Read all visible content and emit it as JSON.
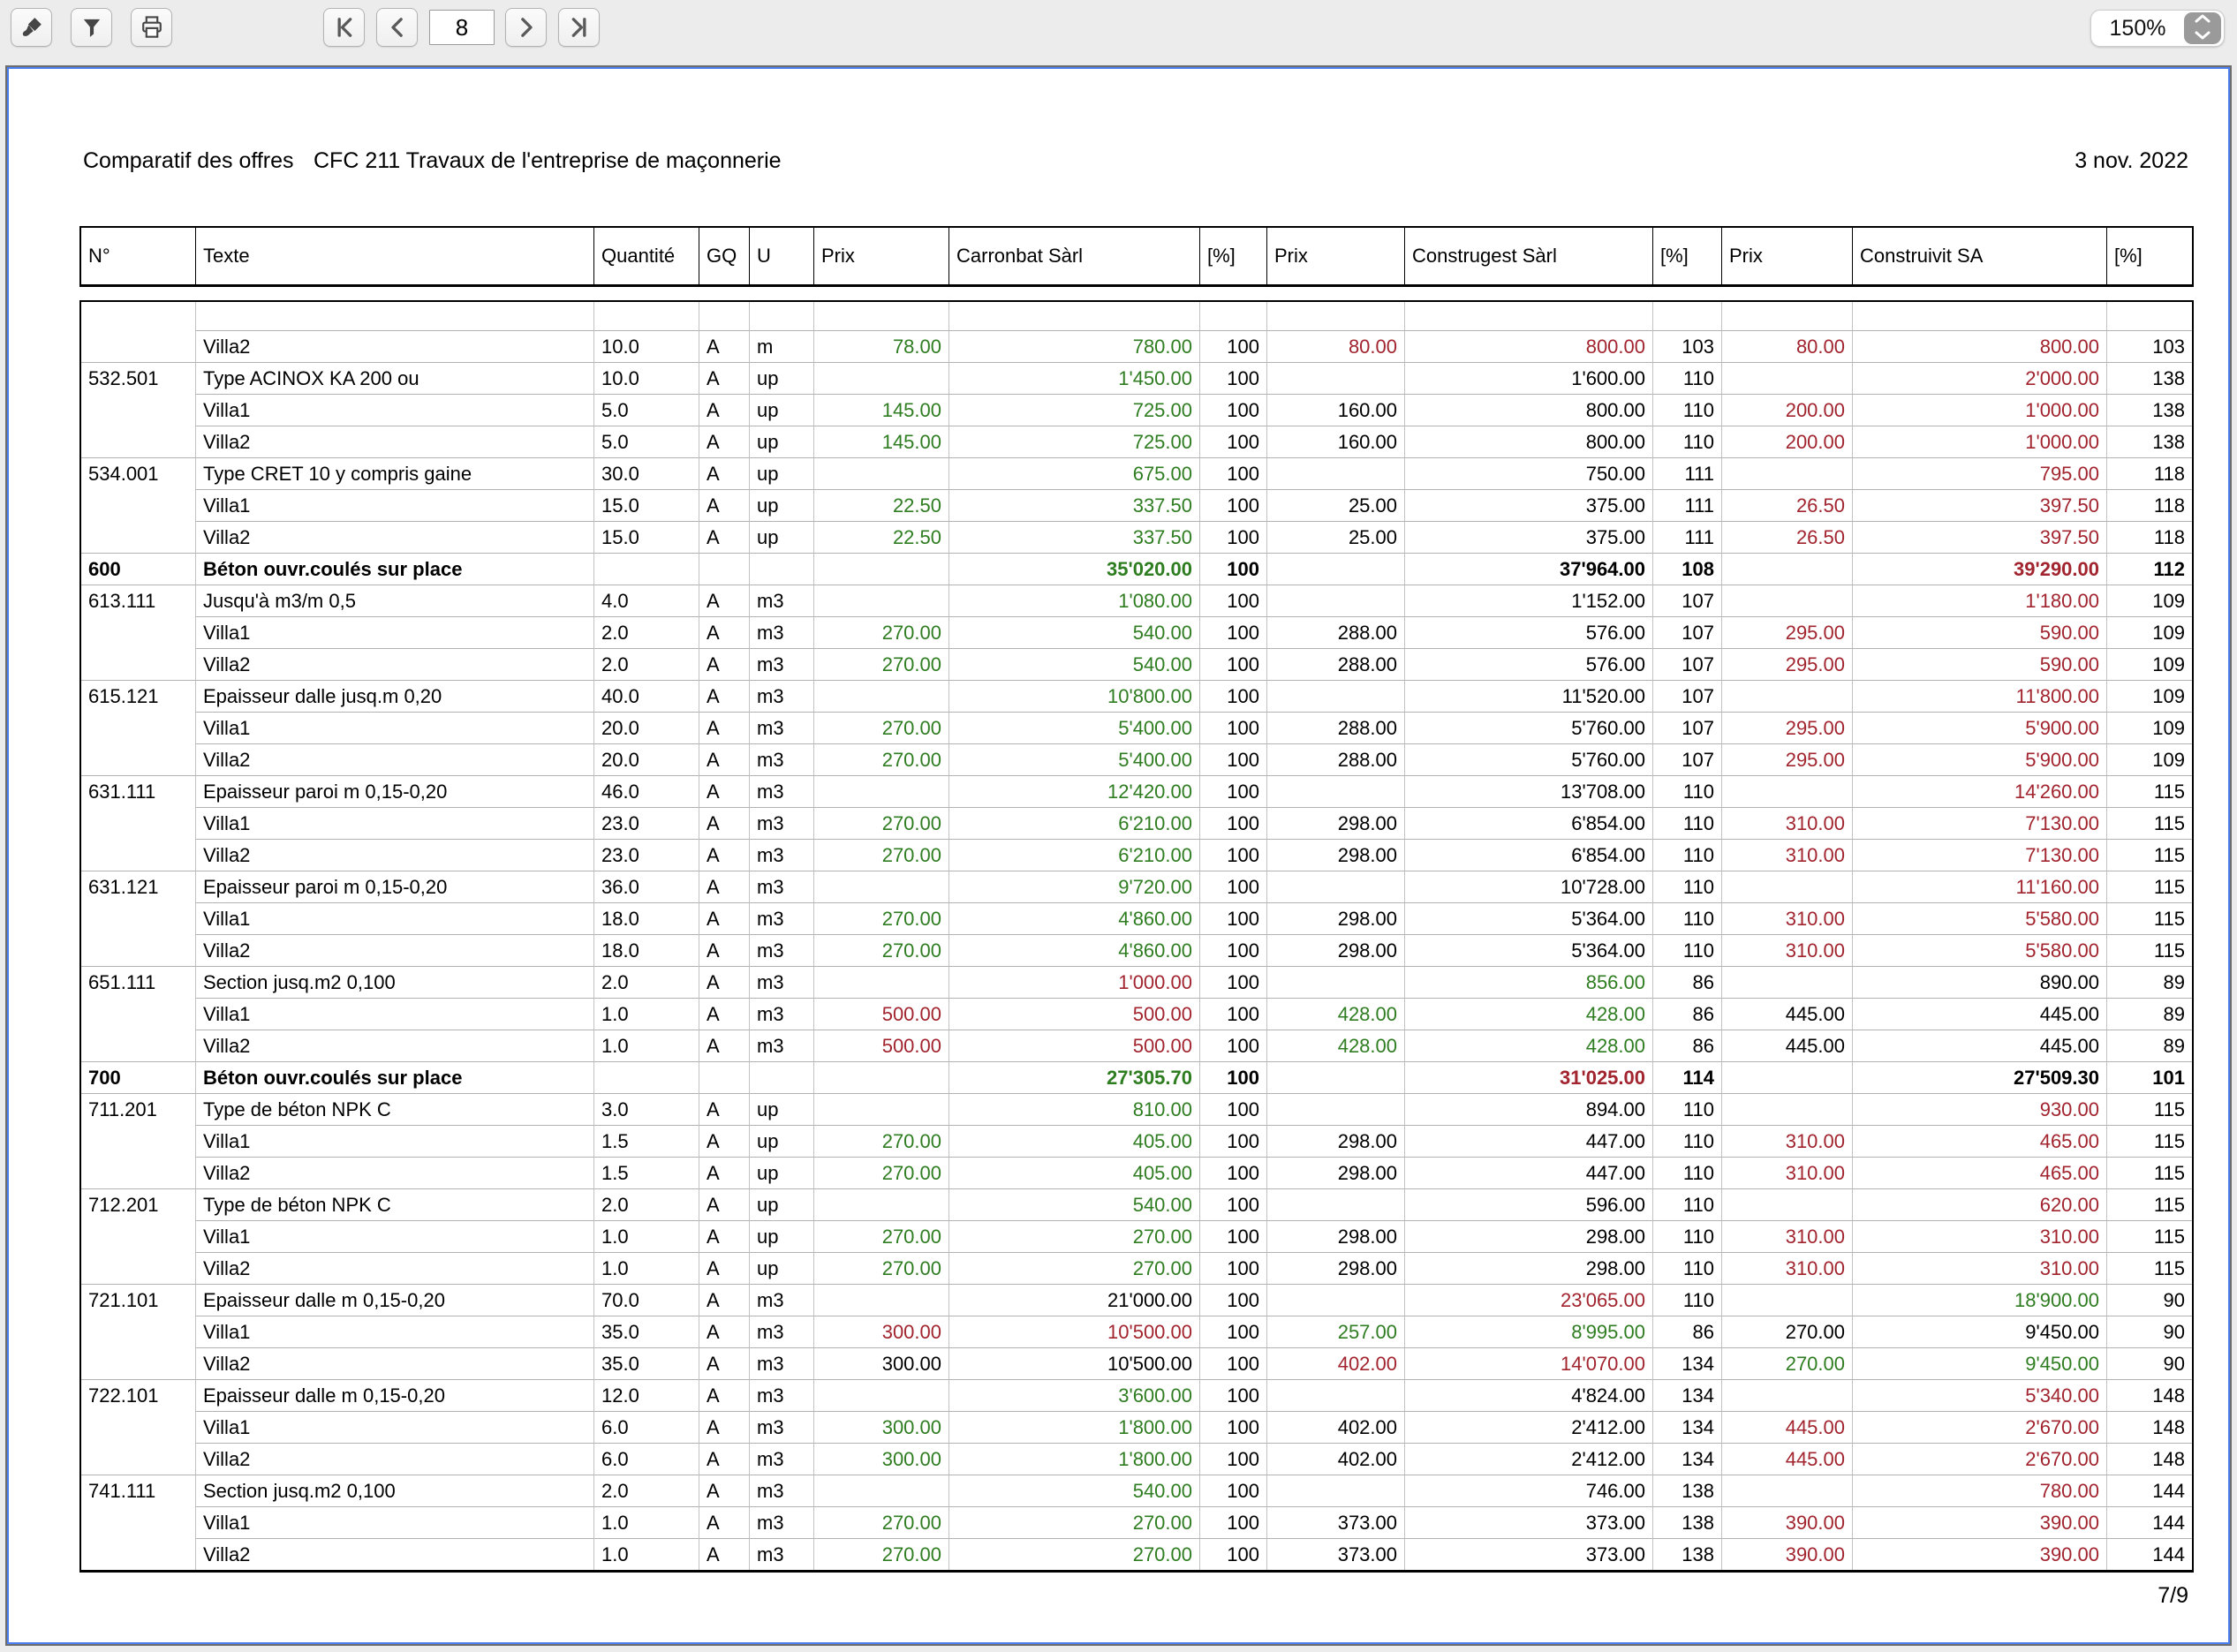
{
  "toolbar": {
    "page_field_value": "8",
    "zoom_value": "150%"
  },
  "document": {
    "title_left": "Comparatif des offres",
    "title_center": "CFC 211 Travaux de l'entreprise de maçonnerie",
    "date": "3 nov. 2022",
    "page_indicator": "7/9"
  },
  "colors": {
    "positive_green": "#2e7d20",
    "negative_red": "#a1242e",
    "frame_blue": "#4a7df0"
  },
  "table": {
    "columns": [
      "N°",
      "Texte",
      "Quantité",
      "GQ",
      "U",
      "Prix",
      "Carronbat Sàrl",
      "[%]",
      "Prix",
      "Construgest Sàrl",
      "[%]",
      "Prix",
      "Construivit SA",
      "[%]"
    ],
    "rows": [
      {
        "k": "e",
        "no": "",
        "tx": "",
        "q": "",
        "gq": "",
        "u": "",
        "v": [
          "",
          "",
          "",
          "",
          "",
          "",
          "",
          "",
          ""
        ],
        "c": "---------"
      },
      {
        "k": "s",
        "no": "",
        "tx": "Villa2",
        "q": "10.0",
        "gq": "A",
        "u": "m",
        "v": [
          "78.00",
          "780.00",
          "100",
          "80.00",
          "800.00",
          "103",
          "80.00",
          "800.00",
          "103"
        ],
        "c": "ggkrrkrrk"
      },
      {
        "k": "i",
        "no": "532.501",
        "tx": "Type ACINOX KA 200 ou",
        "q": "10.0",
        "gq": "A",
        "u": "up",
        "v": [
          "",
          "1'450.00",
          "100",
          "",
          "1'600.00",
          "110",
          "",
          "2'000.00",
          "138"
        ],
        "c": "-gk-kk-rk"
      },
      {
        "k": "s",
        "no": "",
        "tx": "Villa1",
        "q": "5.0",
        "gq": "A",
        "u": "up",
        "v": [
          "145.00",
          "725.00",
          "100",
          "160.00",
          "800.00",
          "110",
          "200.00",
          "1'000.00",
          "138"
        ],
        "c": "ggkkkkrrk"
      },
      {
        "k": "s",
        "no": "",
        "tx": "Villa2",
        "q": "5.0",
        "gq": "A",
        "u": "up",
        "v": [
          "145.00",
          "725.00",
          "100",
          "160.00",
          "800.00",
          "110",
          "200.00",
          "1'000.00",
          "138"
        ],
        "c": "ggkkkkrrk"
      },
      {
        "k": "i",
        "no": "534.001",
        "tx": "Type  CRET 10 y compris gaine",
        "q": "30.0",
        "gq": "A",
        "u": "up",
        "v": [
          "",
          "675.00",
          "100",
          "",
          "750.00",
          "111",
          "",
          "795.00",
          "118"
        ],
        "c": "-gk-kk-rk"
      },
      {
        "k": "s",
        "no": "",
        "tx": "Villa1",
        "q": "15.0",
        "gq": "A",
        "u": "up",
        "v": [
          "22.50",
          "337.50",
          "100",
          "25.00",
          "375.00",
          "111",
          "26.50",
          "397.50",
          "118"
        ],
        "c": "ggkkkkrrk"
      },
      {
        "k": "s",
        "no": "",
        "tx": "Villa2",
        "q": "15.0",
        "gq": "A",
        "u": "up",
        "v": [
          "22.50",
          "337.50",
          "100",
          "25.00",
          "375.00",
          "111",
          "26.50",
          "397.50",
          "118"
        ],
        "c": "ggkkkkrrk"
      },
      {
        "k": "t",
        "no": "600",
        "tx": "Béton ouvr.coulés sur place",
        "q": "",
        "gq": "",
        "u": "",
        "v": [
          "",
          "35'020.00",
          "100",
          "",
          "37'964.00",
          "108",
          "",
          "39'290.00",
          "112"
        ],
        "c": "-gk-kk-rk"
      },
      {
        "k": "i",
        "no": "613.111",
        "tx": "Jusqu'à m3/m 0,5",
        "q": "4.0",
        "gq": "A",
        "u": "m3",
        "v": [
          "",
          "1'080.00",
          "100",
          "",
          "1'152.00",
          "107",
          "",
          "1'180.00",
          "109"
        ],
        "c": "-gk-kk-rk"
      },
      {
        "k": "s",
        "no": "",
        "tx": "Villa1",
        "q": "2.0",
        "gq": "A",
        "u": "m3",
        "v": [
          "270.00",
          "540.00",
          "100",
          "288.00",
          "576.00",
          "107",
          "295.00",
          "590.00",
          "109"
        ],
        "c": "ggkkkkrrk"
      },
      {
        "k": "s",
        "no": "",
        "tx": "Villa2",
        "q": "2.0",
        "gq": "A",
        "u": "m3",
        "v": [
          "270.00",
          "540.00",
          "100",
          "288.00",
          "576.00",
          "107",
          "295.00",
          "590.00",
          "109"
        ],
        "c": "ggkkkkrrk"
      },
      {
        "k": "i",
        "no": "615.121",
        "tx": "Epaisseur dalle jusq.m 0,20",
        "q": "40.0",
        "gq": "A",
        "u": "m3",
        "v": [
          "",
          "10'800.00",
          "100",
          "",
          "11'520.00",
          "107",
          "",
          "11'800.00",
          "109"
        ],
        "c": "-gk-kk-rk"
      },
      {
        "k": "s",
        "no": "",
        "tx": "Villa1",
        "q": "20.0",
        "gq": "A",
        "u": "m3",
        "v": [
          "270.00",
          "5'400.00",
          "100",
          "288.00",
          "5'760.00",
          "107",
          "295.00",
          "5'900.00",
          "109"
        ],
        "c": "ggkkkkrrk"
      },
      {
        "k": "s",
        "no": "",
        "tx": "Villa2",
        "q": "20.0",
        "gq": "A",
        "u": "m3",
        "v": [
          "270.00",
          "5'400.00",
          "100",
          "288.00",
          "5'760.00",
          "107",
          "295.00",
          "5'900.00",
          "109"
        ],
        "c": "ggkkkkrrk"
      },
      {
        "k": "i",
        "no": "631.111",
        "tx": "Epaisseur paroi m 0,15-0,20",
        "q": "46.0",
        "gq": "A",
        "u": "m3",
        "v": [
          "",
          "12'420.00",
          "100",
          "",
          "13'708.00",
          "110",
          "",
          "14'260.00",
          "115"
        ],
        "c": "-gk-kk-rk"
      },
      {
        "k": "s",
        "no": "",
        "tx": "Villa1",
        "q": "23.0",
        "gq": "A",
        "u": "m3",
        "v": [
          "270.00",
          "6'210.00",
          "100",
          "298.00",
          "6'854.00",
          "110",
          "310.00",
          "7'130.00",
          "115"
        ],
        "c": "ggkkkkrrk"
      },
      {
        "k": "s",
        "no": "",
        "tx": "Villa2",
        "q": "23.0",
        "gq": "A",
        "u": "m3",
        "v": [
          "270.00",
          "6'210.00",
          "100",
          "298.00",
          "6'854.00",
          "110",
          "310.00",
          "7'130.00",
          "115"
        ],
        "c": "ggkkkkrrk"
      },
      {
        "k": "i",
        "no": "631.121",
        "tx": "Epaisseur paroi m 0,15-0,20",
        "q": "36.0",
        "gq": "A",
        "u": "m3",
        "v": [
          "",
          "9'720.00",
          "100",
          "",
          "10'728.00",
          "110",
          "",
          "11'160.00",
          "115"
        ],
        "c": "-gk-kk-rk"
      },
      {
        "k": "s",
        "no": "",
        "tx": "Villa1",
        "q": "18.0",
        "gq": "A",
        "u": "m3",
        "v": [
          "270.00",
          "4'860.00",
          "100",
          "298.00",
          "5'364.00",
          "110",
          "310.00",
          "5'580.00",
          "115"
        ],
        "c": "ggkkkkrrk"
      },
      {
        "k": "s",
        "no": "",
        "tx": "Villa2",
        "q": "18.0",
        "gq": "A",
        "u": "m3",
        "v": [
          "270.00",
          "4'860.00",
          "100",
          "298.00",
          "5'364.00",
          "110",
          "310.00",
          "5'580.00",
          "115"
        ],
        "c": "ggkkkkrrk"
      },
      {
        "k": "i",
        "no": "651.111",
        "tx": "Section jusq.m2 0,100",
        "q": "2.0",
        "gq": "A",
        "u": "m3",
        "v": [
          "",
          "1'000.00",
          "100",
          "",
          "856.00",
          "86",
          "",
          "890.00",
          "89"
        ],
        "c": "-rk-gk-kk"
      },
      {
        "k": "s",
        "no": "",
        "tx": "Villa1",
        "q": "1.0",
        "gq": "A",
        "u": "m3",
        "v": [
          "500.00",
          "500.00",
          "100",
          "428.00",
          "428.00",
          "86",
          "445.00",
          "445.00",
          "89"
        ],
        "c": "rrkggkkkk"
      },
      {
        "k": "s",
        "no": "",
        "tx": "Villa2",
        "q": "1.0",
        "gq": "A",
        "u": "m3",
        "v": [
          "500.00",
          "500.00",
          "100",
          "428.00",
          "428.00",
          "86",
          "445.00",
          "445.00",
          "89"
        ],
        "c": "rrkggkkkk"
      },
      {
        "k": "t",
        "no": "700",
        "tx": "Béton ouvr.coulés sur place",
        "q": "",
        "gq": "",
        "u": "",
        "v": [
          "",
          "27'305.70",
          "100",
          "",
          "31'025.00",
          "114",
          "",
          "27'509.30",
          "101"
        ],
        "c": "-gk-rk-kk"
      },
      {
        "k": "i",
        "no": "711.201",
        "tx": "Type de béton NPK C",
        "q": "3.0",
        "gq": "A",
        "u": "up",
        "v": [
          "",
          "810.00",
          "100",
          "",
          "894.00",
          "110",
          "",
          "930.00",
          "115"
        ],
        "c": "-gk-kk-rk"
      },
      {
        "k": "s",
        "no": "",
        "tx": "Villa1",
        "q": "1.5",
        "gq": "A",
        "u": "up",
        "v": [
          "270.00",
          "405.00",
          "100",
          "298.00",
          "447.00",
          "110",
          "310.00",
          "465.00",
          "115"
        ],
        "c": "ggkkkkrrk"
      },
      {
        "k": "s",
        "no": "",
        "tx": "Villa2",
        "q": "1.5",
        "gq": "A",
        "u": "up",
        "v": [
          "270.00",
          "405.00",
          "100",
          "298.00",
          "447.00",
          "110",
          "310.00",
          "465.00",
          "115"
        ],
        "c": "ggkkkkrrk"
      },
      {
        "k": "i",
        "no": "712.201",
        "tx": "Type de béton NPK C",
        "q": "2.0",
        "gq": "A",
        "u": "up",
        "v": [
          "",
          "540.00",
          "100",
          "",
          "596.00",
          "110",
          "",
          "620.00",
          "115"
        ],
        "c": "-gk-kk-rk"
      },
      {
        "k": "s",
        "no": "",
        "tx": "Villa1",
        "q": "1.0",
        "gq": "A",
        "u": "up",
        "v": [
          "270.00",
          "270.00",
          "100",
          "298.00",
          "298.00",
          "110",
          "310.00",
          "310.00",
          "115"
        ],
        "c": "ggkkkkrrk"
      },
      {
        "k": "s",
        "no": "",
        "tx": "Villa2",
        "q": "1.0",
        "gq": "A",
        "u": "up",
        "v": [
          "270.00",
          "270.00",
          "100",
          "298.00",
          "298.00",
          "110",
          "310.00",
          "310.00",
          "115"
        ],
        "c": "ggkkkkrrk"
      },
      {
        "k": "i",
        "no": "721.101",
        "tx": "Epaisseur dalle m 0,15-0,20",
        "q": "70.0",
        "gq": "A",
        "u": "m3",
        "v": [
          "",
          "21'000.00",
          "100",
          "",
          "23'065.00",
          "110",
          "",
          "18'900.00",
          "90"
        ],
        "c": "-kk-rk-gk"
      },
      {
        "k": "s",
        "no": "",
        "tx": "Villa1",
        "q": "35.0",
        "gq": "A",
        "u": "m3",
        "v": [
          "300.00",
          "10'500.00",
          "100",
          "257.00",
          "8'995.00",
          "86",
          "270.00",
          "9'450.00",
          "90"
        ],
        "c": "rrkggkkkk"
      },
      {
        "k": "s",
        "no": "",
        "tx": "Villa2",
        "q": "35.0",
        "gq": "A",
        "u": "m3",
        "v": [
          "300.00",
          "10'500.00",
          "100",
          "402.00",
          "14'070.00",
          "134",
          "270.00",
          "9'450.00",
          "90"
        ],
        "c": "kkkrrkggk"
      },
      {
        "k": "i",
        "no": "722.101",
        "tx": "Epaisseur dalle m 0,15-0,20",
        "q": "12.0",
        "gq": "A",
        "u": "m3",
        "v": [
          "",
          "3'600.00",
          "100",
          "",
          "4'824.00",
          "134",
          "",
          "5'340.00",
          "148"
        ],
        "c": "-gk-kk-rk"
      },
      {
        "k": "s",
        "no": "",
        "tx": "Villa1",
        "q": "6.0",
        "gq": "A",
        "u": "m3",
        "v": [
          "300.00",
          "1'800.00",
          "100",
          "402.00",
          "2'412.00",
          "134",
          "445.00",
          "2'670.00",
          "148"
        ],
        "c": "ggkkkkrrk"
      },
      {
        "k": "s",
        "no": "",
        "tx": "Villa2",
        "q": "6.0",
        "gq": "A",
        "u": "m3",
        "v": [
          "300.00",
          "1'800.00",
          "100",
          "402.00",
          "2'412.00",
          "134",
          "445.00",
          "2'670.00",
          "148"
        ],
        "c": "ggkkkkrrk"
      },
      {
        "k": "i",
        "no": "741.111",
        "tx": "Section jusq.m2 0,100",
        "q": "2.0",
        "gq": "A",
        "u": "m3",
        "v": [
          "",
          "540.00",
          "100",
          "",
          "746.00",
          "138",
          "",
          "780.00",
          "144"
        ],
        "c": "-gk-kk-rk"
      },
      {
        "k": "s",
        "no": "",
        "tx": "Villa1",
        "q": "1.0",
        "gq": "A",
        "u": "m3",
        "v": [
          "270.00",
          "270.00",
          "100",
          "373.00",
          "373.00",
          "138",
          "390.00",
          "390.00",
          "144"
        ],
        "c": "ggkkkkrrk"
      },
      {
        "k": "s",
        "no": "",
        "tx": "Villa2",
        "q": "1.0",
        "gq": "A",
        "u": "m3",
        "v": [
          "270.00",
          "270.00",
          "100",
          "373.00",
          "373.00",
          "138",
          "390.00",
          "390.00",
          "144"
        ],
        "c": "ggkkkkrrk"
      }
    ]
  }
}
